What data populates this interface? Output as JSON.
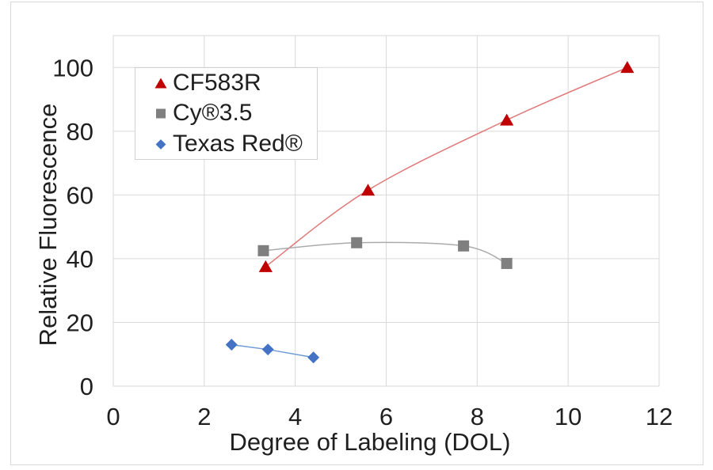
{
  "chart_data": {
    "type": "scatter",
    "title": "",
    "xlabel": "Degree of Labeling (DOL)",
    "ylabel": "Relative Fluorescence",
    "xlim": [
      0,
      12
    ],
    "ylim": [
      0,
      110
    ],
    "xticks": [
      0,
      2,
      4,
      6,
      8,
      10,
      12
    ],
    "yticks": [
      0,
      20,
      40,
      60,
      80,
      100
    ],
    "grid": true,
    "legend_position": "top-left-inside",
    "series": [
      {
        "name": "CF583R",
        "marker": "triangle",
        "color": "#c00000",
        "line_color": "#e07878",
        "smooth": true,
        "points": [
          [
            3.35,
            37.5
          ],
          [
            5.6,
            61.5
          ],
          [
            8.65,
            83.5
          ],
          [
            11.3,
            100
          ]
        ]
      },
      {
        "name": "Cy®3.5",
        "marker": "square",
        "color": "#7f7f7f",
        "line_color": "#ababab",
        "smooth": true,
        "points": [
          [
            3.3,
            42.5
          ],
          [
            5.35,
            45
          ],
          [
            7.7,
            44
          ],
          [
            8.65,
            38.5
          ]
        ]
      },
      {
        "name": "Texas Red®",
        "marker": "diamond",
        "color": "#4472c4",
        "line_color": "#6f9bd4",
        "smooth": false,
        "points": [
          [
            2.6,
            13
          ],
          [
            3.4,
            11.5
          ],
          [
            4.4,
            9
          ]
        ]
      }
    ],
    "colors": {
      "grid": "#d9d9d9",
      "frame": "#d9d9d9",
      "text": "#1f1f1f"
    }
  }
}
